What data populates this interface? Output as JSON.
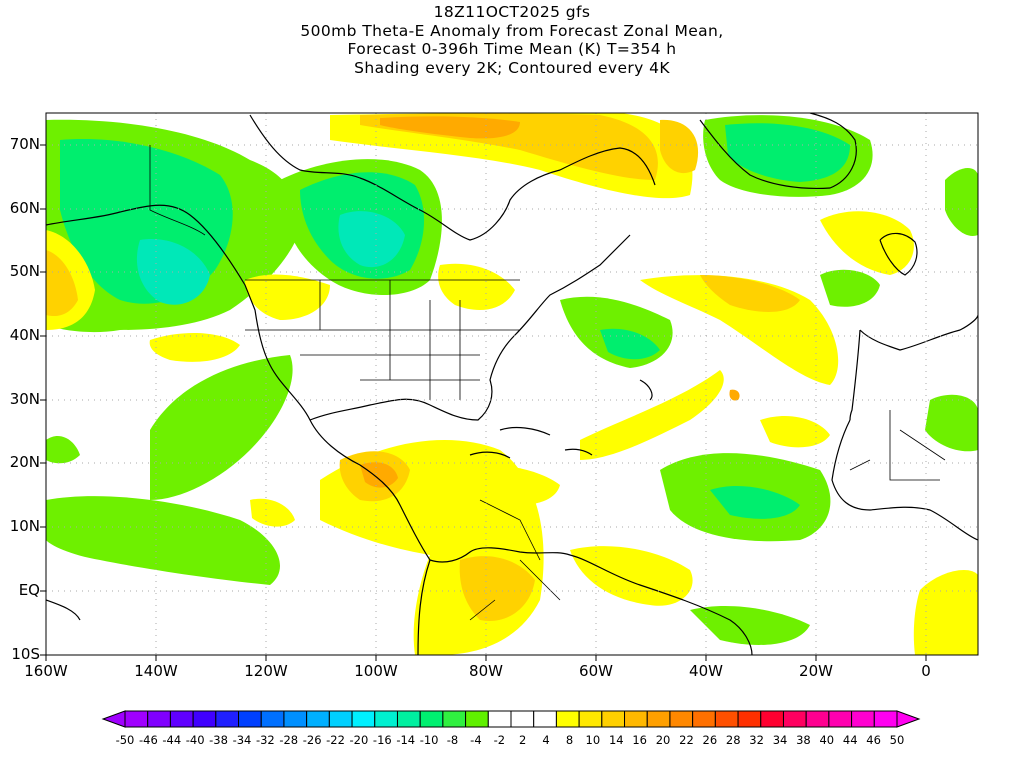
{
  "title": {
    "line1": "18Z11OCT2025 gfs",
    "line2": "500mb Theta-E Anomaly from Forecast Zonal Mean,",
    "line3": "Forecast 0-396h Time Mean (K) T=354 h",
    "line4": "Shading every 2K; Contoured every 4K"
  },
  "axes": {
    "lat_labels": [
      "70N",
      "60N",
      "50N",
      "40N",
      "30N",
      "20N",
      "10N",
      "EQ",
      "10S"
    ],
    "lon_labels": [
      "160W",
      "140W",
      "120W",
      "100W",
      "80W",
      "60W",
      "40W",
      "20W",
      "0"
    ]
  },
  "colorbar": {
    "labels": [
      "-50",
      "-46",
      "-44",
      "-40",
      "-38",
      "-34",
      "-32",
      "-28",
      "-26",
      "-22",
      "-20",
      "-16",
      "-14",
      "-10",
      "-8",
      "-4",
      "-2",
      "2",
      "4",
      "8",
      "10",
      "14",
      "16",
      "20",
      "22",
      "26",
      "28",
      "32",
      "34",
      "38",
      "40",
      "44",
      "46",
      "50"
    ],
    "colors": [
      "#a000ff",
      "#8000ff",
      "#6000ff",
      "#4000ff",
      "#2020ff",
      "#0040ff",
      "#0070ff",
      "#0090ff",
      "#00b0ff",
      "#00d0ff",
      "#00f0ff",
      "#00f0d0",
      "#00f0a0",
      "#00f070",
      "#30f040",
      "#60f000",
      "#ffffff",
      "#ffffff",
      "#ffffff",
      "#ffff00",
      "#ffe800",
      "#ffd000",
      "#ffb800",
      "#ffa000",
      "#ff8800",
      "#ff7000",
      "#ff5000",
      "#ff3000",
      "#ff0030",
      "#ff0060",
      "#ff0090",
      "#ff00b0",
      "#ff00d0",
      "#ff00f0"
    ]
  },
  "palette": {
    "neg_8_10": "#00ee66",
    "neg_4_6": "#66ee00",
    "neg_10_12": "#00e8a0",
    "neg_12_14": "#00e6c8",
    "pos_4_6": "#ffff00",
    "pos_6_8": "#ffe000",
    "pos_8_10": "#ffcc00",
    "pos_10_12": "#ffaa00"
  }
}
